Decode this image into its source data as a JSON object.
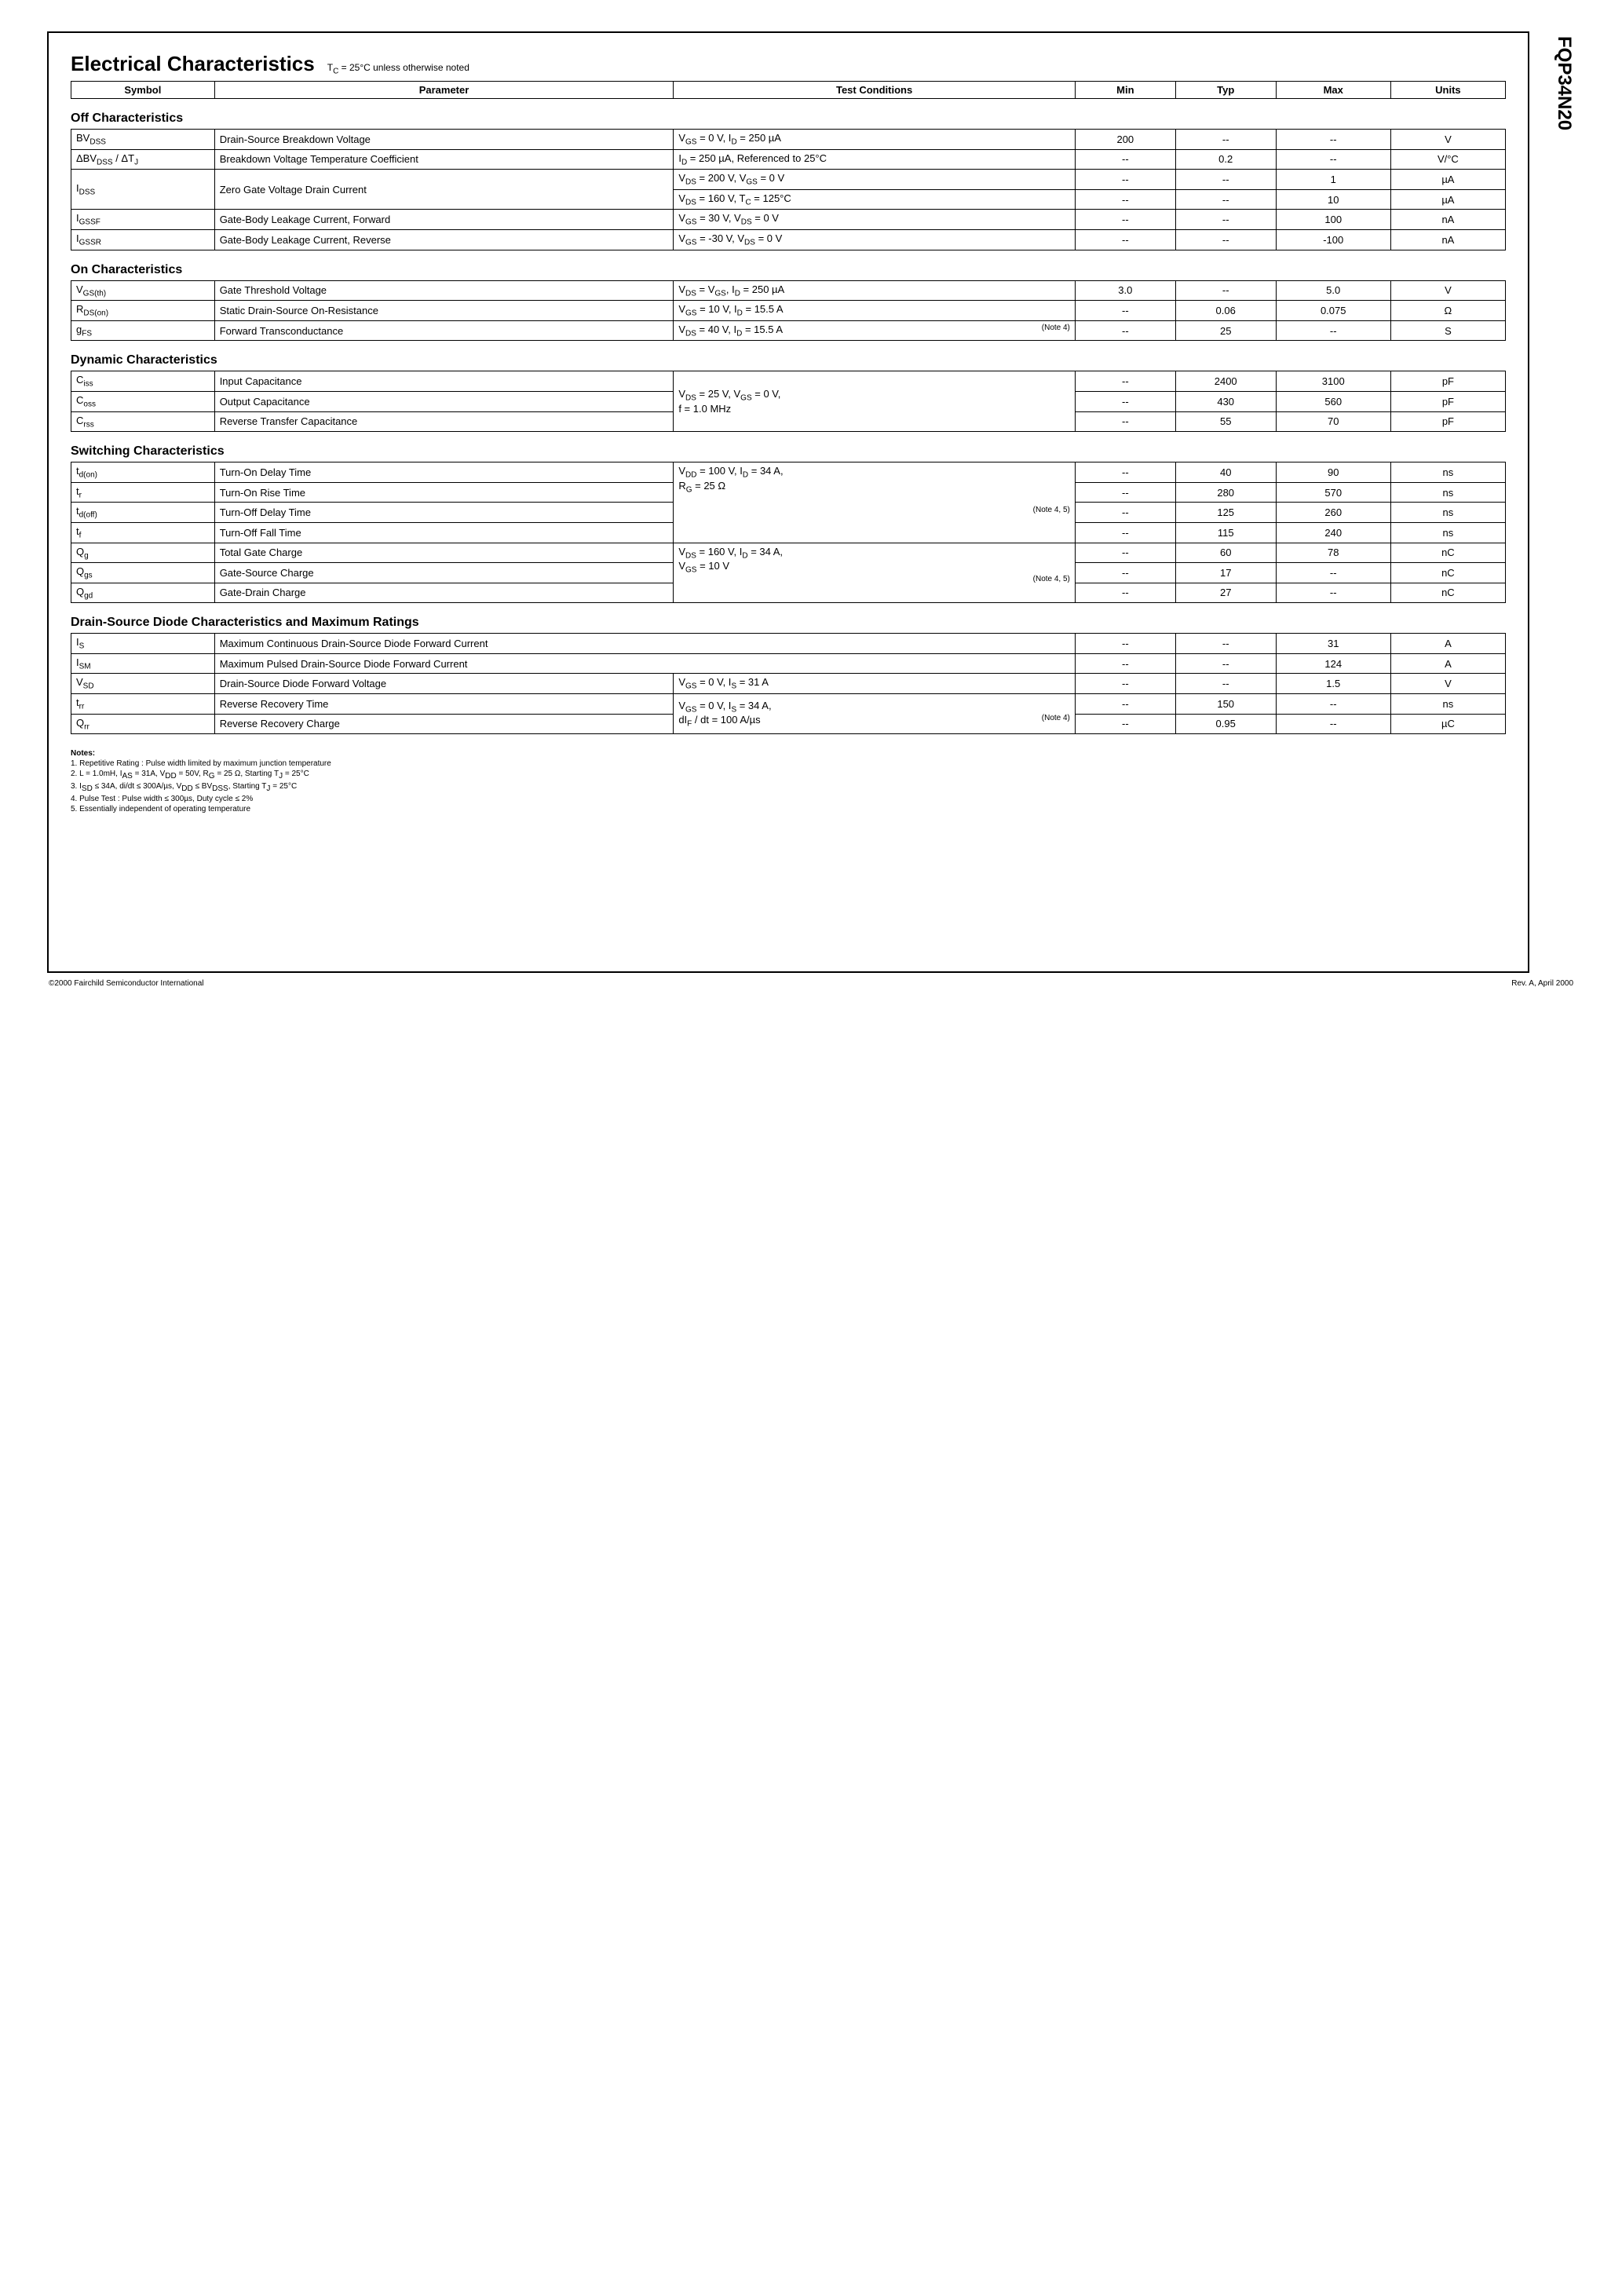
{
  "part_number": "FQP34N20",
  "title": "Electrical Characteristics",
  "title_note_prefix": "T",
  "title_note_sub": "C",
  "title_note_rest": " = 25°C unless otherwise noted",
  "headers": {
    "symbol": "Symbol",
    "parameter": "Parameter",
    "conditions": "Test Conditions",
    "min": "Min",
    "typ": "Typ",
    "max": "Max",
    "units": "Units"
  },
  "sections": {
    "off": "Off Characteristics",
    "on": "On Characteristics",
    "dyn": "Dynamic Characteristics",
    "sw": "Switching Characteristics",
    "dsd": "Drain-Source Diode Characteristics and Maximum Ratings"
  },
  "off": {
    "bvdss": {
      "sym_html": "BV<sub>DSS</sub>",
      "param": "Drain-Source Breakdown Voltage",
      "cond_html": "V<sub>GS</sub> = 0 V, I<sub>D</sub> = 250 µA",
      "min": "200",
      "typ": "--",
      "max": "--",
      "unit": "V"
    },
    "dbvdss": {
      "sym_html": "ΔBV<sub>DSS</sub> / ΔT<sub>J</sub>",
      "param": "Breakdown Voltage Temperature Coefficient",
      "cond_html": "I<sub>D</sub> = 250 µA, Referenced to 25°C",
      "min": "--",
      "typ": "0.2",
      "max": "--",
      "unit": "V/°C"
    },
    "idss1": {
      "sym_html": "I<sub>DSS</sub>",
      "param": "Zero Gate Voltage Drain Current",
      "cond1_html": "V<sub>DS</sub> = 200 V, V<sub>GS</sub> = 0 V",
      "min1": "--",
      "typ1": "--",
      "max1": "1",
      "unit1": "µA",
      "cond2_html": "V<sub>DS</sub> = 160 V, T<sub>C</sub> = 125°C",
      "min2": "--",
      "typ2": "--",
      "max2": "10",
      "unit2": "µA"
    },
    "igssf": {
      "sym_html": "I<sub>GSSF</sub>",
      "param": "Gate-Body Leakage Current, Forward",
      "cond_html": "V<sub>GS</sub> = 30 V, V<sub>DS</sub> = 0 V",
      "min": "--",
      "typ": "--",
      "max": "100",
      "unit": "nA"
    },
    "igssr": {
      "sym_html": "I<sub>GSSR</sub>",
      "param": "Gate-Body Leakage Current, Reverse",
      "cond_html": "V<sub>GS</sub> = -30 V, V<sub>DS</sub> = 0 V",
      "min": "--",
      "typ": "--",
      "max": "-100",
      "unit": "nA"
    }
  },
  "on": {
    "vgsth": {
      "sym_html": "V<sub>GS(th)</sub>",
      "param": "Gate Threshold Voltage",
      "cond_html": "V<sub>DS</sub> = V<sub>GS</sub>, I<sub>D</sub> = 250 µA",
      "min": "3.0",
      "typ": "--",
      "max": "5.0",
      "unit": "V"
    },
    "rdson": {
      "sym_html": "R<sub>DS(on)</sub>",
      "param": "Static Drain-Source On-Resistance",
      "cond_html": "V<sub>GS</sub> = 10 V, I<sub>D</sub> = 15.5 A",
      "min": "--",
      "typ": "0.06",
      "max": "0.075",
      "unit": "Ω"
    },
    "gfs": {
      "sym_html": "g<sub>FS</sub>",
      "param": "Forward Transconductance",
      "cond_html": "V<sub>DS</sub> = 40 V, I<sub>D</sub> = 15.5 A",
      "note": "(Note 4)",
      "min": "--",
      "typ": "25",
      "max": "--",
      "unit": "S"
    }
  },
  "dyn": {
    "cond_html": "V<sub>DS</sub> = 25 V, V<sub>GS</sub> = 0 V,<br>f = 1.0 MHz",
    "ciss": {
      "sym_html": "C<sub>iss</sub>",
      "param": "Input Capacitance",
      "min": "--",
      "typ": "2400",
      "max": "3100",
      "unit": "pF"
    },
    "coss": {
      "sym_html": "C<sub>oss</sub>",
      "param": "Output Capacitance",
      "min": "--",
      "typ": "430",
      "max": "560",
      "unit": "pF"
    },
    "crss": {
      "sym_html": "C<sub>rss</sub>",
      "param": "Reverse Transfer Capacitance",
      "min": "--",
      "typ": "55",
      "max": "70",
      "unit": "pF"
    }
  },
  "sw": {
    "cond1_html": "V<sub>DD</sub> = 100 V, I<sub>D</sub> = 34 A,<br>R<sub>G</sub> = 25 Ω",
    "cond2_html": "V<sub>DS</sub> = 160 V, I<sub>D</sub> = 34 A,<br>V<sub>GS</sub> = 10 V",
    "note": "(Note 4, 5)",
    "tdon": {
      "sym_html": "t<sub>d(on)</sub>",
      "param": "Turn-On Delay Time",
      "min": "--",
      "typ": "40",
      "max": "90",
      "unit": "ns"
    },
    "tr": {
      "sym_html": "t<sub>r</sub>",
      "param": "Turn-On Rise Time",
      "min": "--",
      "typ": "280",
      "max": "570",
      "unit": "ns"
    },
    "tdoff": {
      "sym_html": "t<sub>d(off)</sub>",
      "param": "Turn-Off Delay Time",
      "min": "--",
      "typ": "125",
      "max": "260",
      "unit": "ns"
    },
    "tf": {
      "sym_html": "t<sub>f</sub>",
      "param": "Turn-Off Fall Time",
      "min": "--",
      "typ": "115",
      "max": "240",
      "unit": "ns"
    },
    "qg": {
      "sym_html": "Q<sub>g</sub>",
      "param": "Total Gate Charge",
      "min": "--",
      "typ": "60",
      "max": "78",
      "unit": "nC"
    },
    "qgs": {
      "sym_html": "Q<sub>gs</sub>",
      "param": "Gate-Source Charge",
      "min": "--",
      "typ": "17",
      "max": "--",
      "unit": "nC"
    },
    "qgd": {
      "sym_html": "Q<sub>gd</sub>",
      "param": "Gate-Drain Charge",
      "min": "--",
      "typ": "27",
      "max": "--",
      "unit": "nC"
    }
  },
  "dsd": {
    "is": {
      "sym_html": "I<sub>S</sub>",
      "param": "Maximum Continuous Drain-Source Diode Forward Current",
      "min": "--",
      "typ": "--",
      "max": "31",
      "unit": "A"
    },
    "ism": {
      "sym_html": "I<sub>SM</sub>",
      "param": "Maximum Pulsed Drain-Source Diode Forward Current",
      "min": "--",
      "typ": "--",
      "max": "124",
      "unit": "A"
    },
    "vsd": {
      "sym_html": "V<sub>SD</sub>",
      "param": "Drain-Source Diode Forward Voltage",
      "cond_html": "V<sub>GS</sub> = 0 V, I<sub>S</sub> = 31 A",
      "min": "--",
      "typ": "--",
      "max": "1.5",
      "unit": "V"
    },
    "trr": {
      "sym_html": "t<sub>rr</sub>",
      "param": "Reverse Recovery Time",
      "cond_html": "V<sub>GS</sub> = 0 V, I<sub>S</sub> = 34 A,",
      "min": "--",
      "typ": "150",
      "max": "--",
      "unit": "ns"
    },
    "qrr": {
      "sym_html": "Q<sub>rr</sub>",
      "param": "Reverse Recovery Charge",
      "cond_html": "dI<sub>F</sub> / dt = 100 A/µs",
      "note": "(Note 4)",
      "min": "--",
      "typ": "0.95",
      "max": "--",
      "unit": "µC"
    }
  },
  "notes": {
    "heading": "Notes:",
    "n1": "1. Repetitive Rating : Pulse width limited by maximum junction temperature",
    "n2_html": "2. L = 1.0mH, I<sub>AS</sub> = 31A, V<sub>DD</sub> = 50V, R<sub>G</sub> = 25 Ω, Starting T<sub>J</sub> = 25°C",
    "n3_html": "3. I<sub>SD</sub> ≤ 34A, di/dt ≤ 300A/µs, V<sub>DD</sub> ≤ BV<sub>DSS</sub>, Starting T<sub>J</sub> = 25°C",
    "n4": "4. Pulse Test : Pulse width ≤ 300µs, Duty cycle ≤ 2%",
    "n5": "5. Essentially independent of operating temperature"
  },
  "footer": {
    "left": "©2000 Fairchild Semiconductor International",
    "right": "Rev. A, April 2000"
  }
}
